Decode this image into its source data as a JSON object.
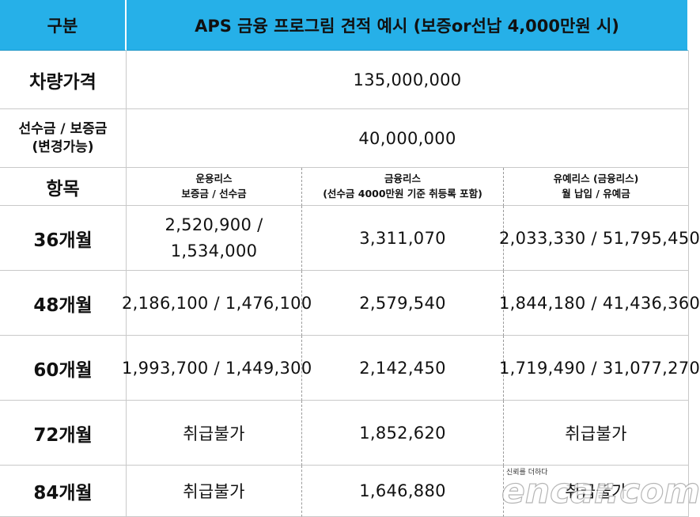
{
  "header": {
    "col_label": "구분",
    "title": "APS 금융 프로그림 견적 예시 (보증or선납 4,000만원 시)"
  },
  "price_row": {
    "label": "차량가격",
    "value": "135,000,000"
  },
  "deposit_row": {
    "label_line1": "선수금 / 보증금",
    "label_line2": "(변경가능)",
    "value": "40,000,000"
  },
  "column_headers": {
    "label": "항목",
    "c1_line1": "운용리스",
    "c1_line2": "보증금 / 선수금",
    "c2_line1": "금융리스",
    "c2_line2": "(선수금 4000만원 기준 취등록 포함)",
    "c3_line1": "유예리스 (금융리스)",
    "c3_line2": "월 납입 / 유예금"
  },
  "rows": [
    {
      "term": "36개월",
      "c1_line1": "2,520,900 /",
      "c1_line2": "1,534,000",
      "c2": "3,311,070",
      "c3": "2,033,330 / 51,795,450"
    },
    {
      "term": "48개월",
      "c1": "2,186,100 / 1,476,100",
      "c2": "2,579,540",
      "c3": "1,844,180 / 41,436,360"
    },
    {
      "term": "60개월",
      "c1": "1,993,700 / 1,449,300",
      "c2": "2,142,450",
      "c3": "1,719,490 / 31,077,270"
    },
    {
      "term": "72개월",
      "c1": "취급불가",
      "c2": "1,852,620",
      "c3": "취급불가"
    },
    {
      "term": "84개월",
      "c1": "취급불가",
      "c2": "1,646,880",
      "c3": "취급불가"
    }
  ],
  "watermark": {
    "tagline": "신뢰를 더하다",
    "brand": "encar.com"
  },
  "colors": {
    "header_bg": "#26b0e8",
    "border": "#c9c9c9"
  }
}
